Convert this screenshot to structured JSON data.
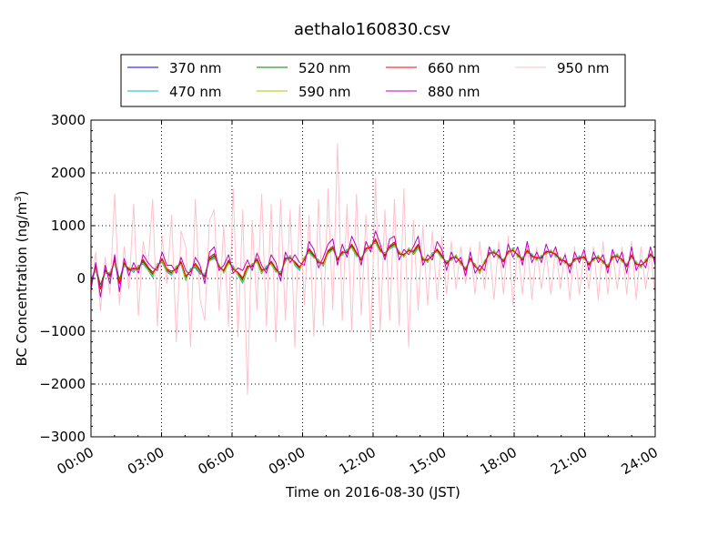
{
  "chart_data": {
    "type": "line",
    "title": "aethalo160830.csv",
    "xlabel": "Time on 2016-08-30 (JST)",
    "ylabel_prefix": "BC Concentration (ng/m",
    "ylabel_sup": "3",
    "ylabel_suffix": ")",
    "xlim": [
      0,
      24
    ],
    "ylim": [
      -3000,
      3000
    ],
    "x_ticks": [
      0,
      3,
      6,
      9,
      12,
      15,
      18,
      21,
      24
    ],
    "x_tick_labels": [
      "00:00",
      "03:00",
      "06:00",
      "09:00",
      "12:00",
      "15:00",
      "18:00",
      "21:00",
      "24:00"
    ],
    "y_ticks": [
      -3000,
      -2000,
      -1000,
      0,
      1000,
      2000,
      3000
    ],
    "y_tick_labels": [
      "−3000",
      "−2000",
      "−1000",
      "0",
      "1000",
      "2000",
      "3000"
    ],
    "grid": true,
    "legend_position": "top-center",
    "colors": {
      "370 nm": "#0000ff",
      "470 nm": "#00bfbf",
      "520 nm": "#008000",
      "590 nm": "#bfbf00",
      "660 nm": "#ff0000",
      "880 nm": "#bf00bf",
      "950 nm": "#ffc0cb"
    },
    "series": [
      {
        "name": "370 nm",
        "values": [
          -20,
          180,
          -150,
          120,
          80,
          310,
          -40,
          260,
          190,
          150,
          220,
          300,
          180,
          60,
          250,
          320,
          140,
          90,
          210,
          280,
          -10,
          170,
          230,
          100,
          60,
          350,
          410,
          250,
          120,
          300,
          210,
          80,
          -50,
          190,
          260,
          330,
          120,
          210,
          290,
          150,
          100,
          340,
          420,
          280,
          180,
          390,
          520,
          410,
          330,
          260,
          490,
          560,
          380,
          470,
          520,
          600,
          450,
          380,
          540,
          620,
          700,
          520,
          460,
          580,
          640,
          500,
          420,
          560,
          480,
          600,
          380,
          320,
          460,
          520,
          400,
          310,
          360,
          430,
          280,
          190,
          350,
          260,
          120,
          320,
          450,
          520,
          400,
          350,
          480,
          560,
          420,
          380,
          500,
          450,
          360,
          420,
          480,
          520,
          430,
          380,
          300,
          260,
          340,
          410,
          380,
          290,
          350,
          420,
          300,
          240,
          380,
          450,
          330,
          260,
          410,
          300,
          220,
          350,
          430,
          380
        ]
      },
      {
        "name": "470 nm",
        "values": [
          -60,
          150,
          -180,
          90,
          120,
          280,
          -80,
          230,
          200,
          110,
          250,
          270,
          160,
          20,
          280,
          300,
          120,
          60,
          240,
          260,
          -40,
          190,
          200,
          80,
          90,
          330,
          380,
          270,
          100,
          280,
          240,
          60,
          -90,
          160,
          280,
          310,
          90,
          240,
          270,
          120,
          130,
          310,
          440,
          250,
          150,
          410,
          490,
          390,
          360,
          230,
          470,
          540,
          400,
          440,
          550,
          580,
          420,
          400,
          510,
          640,
          670,
          500,
          490,
          560,
          610,
          520,
          400,
          580,
          450,
          570,
          400,
          300,
          490,
          500,
          380,
          330,
          340,
          450,
          260,
          210,
          330,
          280,
          90,
          340,
          430,
          540,
          380,
          370,
          460,
          580,
          400,
          400,
          480,
          470,
          340,
          440,
          460,
          540,
          410,
          400,
          280,
          280,
          320,
          430,
          360,
          310,
          330,
          440,
          280,
          260,
          360,
          470,
          310,
          280,
          390,
          320,
          200,
          370,
          410,
          400
        ]
      },
      {
        "name": "520 nm",
        "values": [
          -90,
          210,
          -120,
          140,
          60,
          340,
          -20,
          280,
          170,
          180,
          190,
          330,
          200,
          90,
          230,
          350,
          160,
          110,
          190,
          300,
          20,
          150,
          260,
          130,
          40,
          370,
          440,
          230,
          140,
          320,
          190,
          100,
          -20,
          220,
          240,
          350,
          150,
          190,
          310,
          170,
          80,
          360,
          400,
          300,
          200,
          370,
          540,
          430,
          310,
          280,
          510,
          580,
          360,
          490,
          500,
          620,
          470,
          360,
          560,
          600,
          720,
          540,
          440,
          600,
          660,
          480,
          440,
          540,
          500,
          620,
          360,
          340,
          440,
          540,
          420,
          290,
          380,
          410,
          300,
          170,
          370,
          240,
          140,
          300,
          470,
          500,
          420,
          330,
          500,
          540,
          440,
          360,
          520,
          430,
          380,
          400,
          500,
          500,
          450,
          360,
          320,
          240,
          360,
          390,
          400,
          270,
          370,
          400,
          320,
          220,
          400,
          430,
          350,
          240,
          430,
          280,
          240,
          330,
          450,
          360
        ]
      },
      {
        "name": "590 nm",
        "values": [
          -40,
          170,
          -160,
          110,
          100,
          300,
          -60,
          250,
          210,
          140,
          230,
          290,
          170,
          50,
          260,
          330,
          130,
          80,
          220,
          270,
          -20,
          160,
          240,
          110,
          70,
          340,
          400,
          260,
          110,
          290,
          220,
          70,
          -60,
          180,
          270,
          320,
          110,
          220,
          280,
          140,
          110,
          330,
          430,
          270,
          170,
          400,
          510,
          400,
          340,
          250,
          480,
          550,
          390,
          460,
          530,
          590,
          440,
          390,
          530,
          630,
          690,
          510,
          470,
          570,
          630,
          510,
          410,
          570,
          470,
          590,
          390,
          310,
          470,
          510,
          390,
          320,
          350,
          440,
          270,
          200,
          340,
          270,
          110,
          330,
          440,
          530,
          390,
          360,
          470,
          570,
          410,
          390,
          490,
          460,
          350,
          430,
          470,
          530,
          420,
          390,
          290,
          270,
          330,
          420,
          370,
          300,
          340,
          430,
          290,
          250,
          370,
          460,
          320,
          270,
          400,
          310,
          210,
          360,
          420,
          390
        ]
      },
      {
        "name": "660 nm",
        "values": [
          -120,
          240,
          -200,
          170,
          30,
          370,
          -100,
          300,
          150,
          200,
          170,
          360,
          220,
          120,
          210,
          380,
          180,
          140,
          170,
          320,
          50,
          130,
          290,
          160,
          20,
          400,
          470,
          210,
          160,
          350,
          170,
          120,
          10,
          240,
          220,
          380,
          170,
          170,
          330,
          190,
          60,
          390,
          380,
          320,
          220,
          350,
          570,
          450,
          290,
          300,
          530,
          610,
          340,
          510,
          480,
          650,
          490,
          340,
          580,
          580,
          750,
          560,
          420,
          620,
          690,
          460,
          460,
          520,
          520,
          650,
          340,
          360,
          420,
          560,
          440,
          270,
          400,
          390,
          320,
          150,
          390,
          220,
          160,
          280,
          490,
          480,
          440,
          310,
          520,
          520,
          460,
          340,
          540,
          410,
          400,
          380,
          520,
          490,
          470,
          340,
          340,
          220,
          380,
          370,
          420,
          250,
          390,
          380,
          340,
          200,
          420,
          410,
          370,
          220,
          450,
          260,
          260,
          310,
          470,
          340
        ]
      },
      {
        "name": "880 nm",
        "values": [
          -200,
          300,
          -350,
          250,
          -100,
          450,
          -250,
          380,
          50,
          300,
          100,
          450,
          300,
          200,
          150,
          500,
          250,
          250,
          100,
          400,
          150,
          50,
          400,
          250,
          -100,
          500,
          600,
          150,
          250,
          450,
          100,
          200,
          150,
          350,
          150,
          480,
          250,
          100,
          450,
          300,
          -50,
          500,
          300,
          450,
          300,
          250,
          700,
          550,
          200,
          400,
          650,
          750,
          250,
          650,
          400,
          800,
          600,
          250,
          700,
          500,
          900,
          650,
          350,
          750,
          800,
          350,
          550,
          450,
          600,
          800,
          250,
          450,
          350,
          700,
          550,
          150,
          500,
          300,
          400,
          50,
          500,
          100,
          250,
          150,
          600,
          400,
          550,
          200,
          650,
          400,
          600,
          250,
          700,
          300,
          500,
          300,
          650,
          400,
          600,
          250,
          450,
          100,
          500,
          300,
          550,
          150,
          500,
          300,
          450,
          100,
          550,
          300,
          500,
          100,
          600,
          150,
          350,
          200,
          600,
          250
        ]
      },
      {
        "name": "950 nm",
        "values": [
          -300,
          500,
          -600,
          400,
          -300,
          1600,
          -500,
          600,
          -200,
          1400,
          -700,
          700,
          200,
          1500,
          -900,
          800,
          -100,
          1200,
          -1200,
          900,
          600,
          -1300,
          1500,
          -400,
          -800,
          1100,
          1300,
          -600,
          1000,
          -900,
          1700,
          -1100,
          1300,
          -2200,
          1100,
          -600,
          1600,
          -900,
          1400,
          -1200,
          1500,
          -800,
          1300,
          -1300,
          1400,
          -500,
          1200,
          -1100,
          1500,
          -900,
          1700,
          -600,
          2550,
          -800,
          1400,
          -1000,
          1600,
          -700,
          1200,
          -1200,
          1900,
          -1000,
          1300,
          -800,
          1500,
          -900,
          1700,
          -1300,
          1100,
          -600,
          1000,
          -500,
          900,
          -400,
          800,
          -300,
          700,
          -200,
          600,
          -100,
          600,
          -300,
          700,
          -200,
          600,
          -400,
          700,
          -300,
          800,
          -500,
          600,
          -300,
          700,
          -400,
          600,
          -200,
          500,
          -300,
          600,
          -200,
          500,
          -400,
          600,
          -300,
          500,
          -200,
          600,
          -400,
          700,
          -300,
          500,
          -200,
          600,
          -300,
          700,
          -400,
          600,
          -200,
          500,
          -300
        ]
      }
    ]
  }
}
